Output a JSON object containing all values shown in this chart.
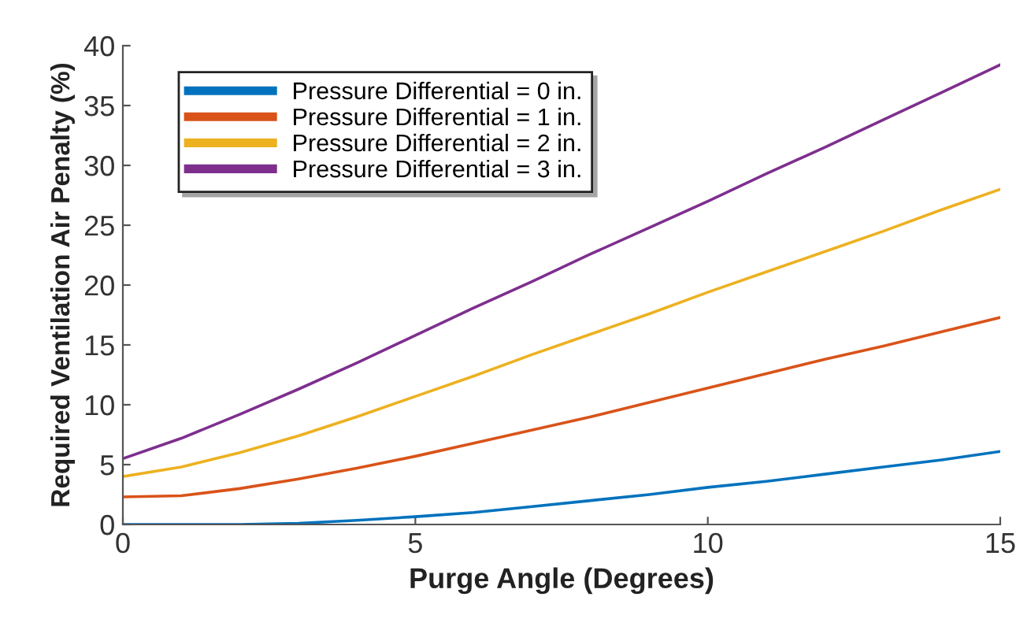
{
  "chart_data": {
    "type": "line",
    "xlabel": "Purge Angle (Degrees)",
    "ylabel": "Required Ventilation Air Penalty (%)",
    "x": [
      0,
      1,
      2,
      3,
      4,
      5,
      6,
      7,
      8,
      9,
      10,
      11,
      12,
      13,
      14,
      15
    ],
    "series": [
      {
        "name": "Pressure Differential = 0 in.",
        "color": "#0072bd",
        "values": [
          0,
          0,
          0,
          0.1,
          0.35,
          0.65,
          1.0,
          1.5,
          2.0,
          2.5,
          3.1,
          3.6,
          4.2,
          4.8,
          5.4,
          6.1
        ]
      },
      {
        "name": "Pressure Differential = 1 in.",
        "color": "#d95319",
        "values": [
          2.3,
          2.4,
          3.0,
          3.8,
          4.7,
          5.7,
          6.8,
          7.9,
          9.0,
          10.2,
          11.4,
          12.6,
          13.8,
          14.9,
          16.1,
          17.3
        ]
      },
      {
        "name": "Pressure Differential = 2 in.",
        "color": "#edb120",
        "values": [
          4.0,
          4.8,
          6.0,
          7.4,
          9.0,
          10.7,
          12.4,
          14.2,
          15.9,
          17.6,
          19.4,
          21.1,
          22.8,
          24.5,
          26.3,
          28.0
        ]
      },
      {
        "name": "Pressure Differential = 3 in.",
        "color": "#7e2f8e",
        "values": [
          5.5,
          7.2,
          9.2,
          11.3,
          13.5,
          15.8,
          18.1,
          20.3,
          22.6,
          24.8,
          27.0,
          29.3,
          31.5,
          33.8,
          36.1,
          38.4
        ]
      }
    ],
    "xlim": [
      0,
      15
    ],
    "xticks": [
      0,
      5,
      10,
      15
    ],
    "ylim": [
      0,
      40
    ],
    "yticks": [
      0,
      5,
      10,
      15,
      20,
      25,
      30,
      35,
      40
    ],
    "grid": false,
    "legend": "top left",
    "marker": "none",
    "line_style": "solid"
  }
}
